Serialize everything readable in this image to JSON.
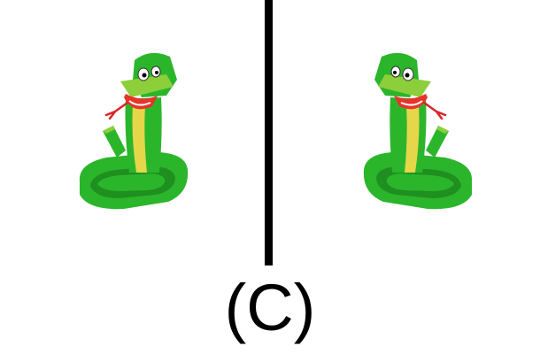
{
  "panel_label": "(C)",
  "colors": {
    "background": "#ffffff",
    "divider": "#000000",
    "snake_green": "#2bb52b",
    "snake_dark_green": "#1f8f1f",
    "snake_light_green": "#8ccf3a",
    "snake_belly": "#e6d64a",
    "mouth_red": "#e8332a",
    "tongue": "#d8262a"
  },
  "figures": [
    {
      "icon": "snake-icon",
      "orientation": "facing-left"
    },
    {
      "icon": "snake-icon",
      "orientation": "facing-right-mirrored"
    }
  ]
}
